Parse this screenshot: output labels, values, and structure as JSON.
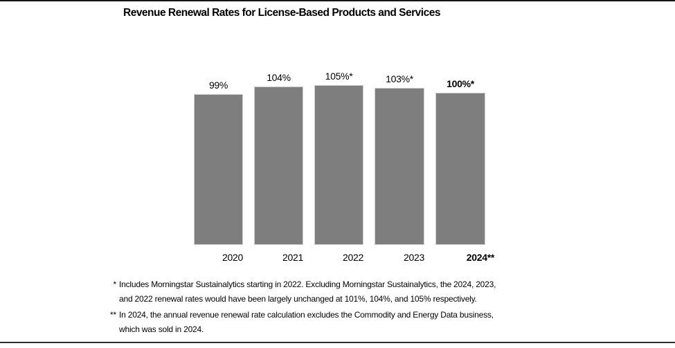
{
  "page": {
    "background": "#ffffff",
    "top_rule_color": "#141414",
    "bottom_rule_color": "#2e2e2e"
  },
  "chart_data": {
    "type": "bar",
    "title": "Revenue Renewal Rates for License-Based Products and Services",
    "categories": [
      "2020",
      "2021",
      "2022",
      "2023",
      "2024**"
    ],
    "values": [
      99,
      104,
      105,
      103,
      100
    ],
    "value_labels": [
      "99%",
      "104%",
      "105%*",
      "103%*",
      "100%*"
    ],
    "emphasized_index": 4,
    "bar_color": "#7e7e7e",
    "xlabel": "",
    "ylabel": "",
    "ylim": [
      0,
      110
    ],
    "grid": false,
    "legend": false,
    "axis_visible": false
  },
  "footnotes": [
    {
      "marker": "*",
      "lines": [
        "Includes Morningstar Sustainalytics starting in 2022. Excluding Morningstar Sustainalytics, the 2024, 2023,",
        "and 2022 renewal rates would have been largely unchanged at 101%, 104%, and 105% respectively."
      ]
    },
    {
      "marker": "**",
      "lines": [
        "In 2024, the annual revenue renewal rate calculation excludes the Commodity and Energy Data business,",
        "which was sold in 2024."
      ]
    }
  ]
}
